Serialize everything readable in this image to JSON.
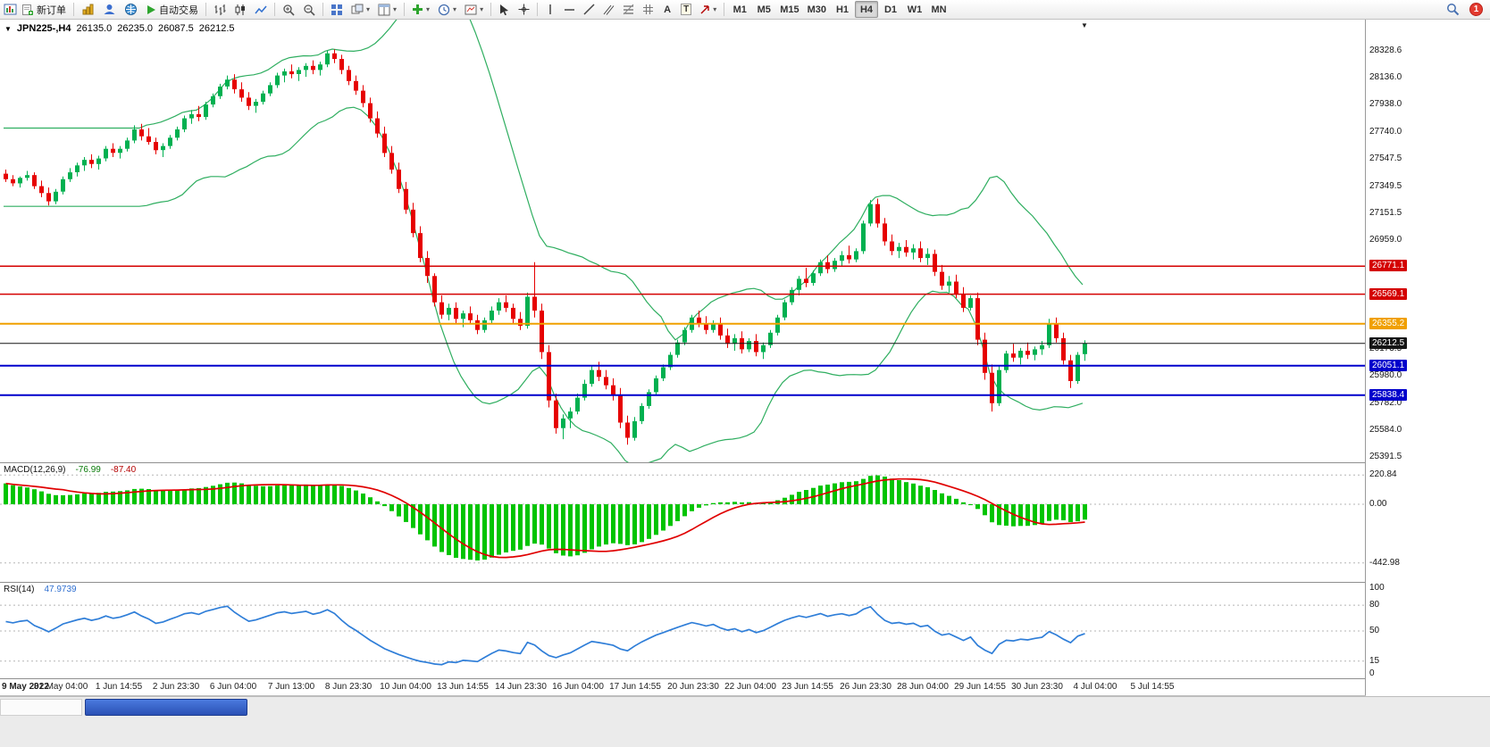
{
  "toolbar": {
    "new_order": "新订单",
    "autotrading": "自动交易",
    "timeframes": [
      "M1",
      "M5",
      "M15",
      "M30",
      "H1",
      "H4",
      "D1",
      "W1",
      "MN"
    ],
    "active_timeframe": "H4",
    "notification_badge": "1"
  },
  "chart_header": {
    "symbol_period": "JPN225-,H4",
    "open": "26135.0",
    "high": "26235.0",
    "low": "26087.5",
    "close": "26212.5"
  },
  "chart_data": {
    "type": "candlestick",
    "title": "JPN225-,H4",
    "y_axis": {
      "min": 25353,
      "max": 28554,
      "plain_labels": [
        {
          "text": "28328.6",
          "price": 28328.6
        },
        {
          "text": "28136.0",
          "price": 28136.0
        },
        {
          "text": "27938.0",
          "price": 27938.0
        },
        {
          "text": "27740.0",
          "price": 27740.0
        },
        {
          "text": "27547.5",
          "price": 27547.5
        },
        {
          "text": "27349.5",
          "price": 27349.5
        },
        {
          "text": "27151.5",
          "price": 27151.5
        },
        {
          "text": "26959.0",
          "price": 26959.0
        },
        {
          "text": "26173.5",
          "price": 26173.5
        },
        {
          "text": "25980.0",
          "price": 25980.0
        },
        {
          "text": "25782.0",
          "price": 25782.0
        },
        {
          "text": "25584.0",
          "price": 25584.0
        },
        {
          "text": "25391.5",
          "price": 25391.5
        }
      ]
    },
    "price_flags": [
      {
        "text": "26771.1",
        "price": 26771.1,
        "bg": "#d40000"
      },
      {
        "text": "26569.1",
        "price": 26569.1,
        "bg": "#d40000"
      },
      {
        "text": "26355.2",
        "price": 26355.2,
        "bg": "#f0a000"
      },
      {
        "text": "26212.5",
        "price": 26212.5,
        "bg": "#151515"
      },
      {
        "text": "26051.1",
        "price": 26051.1,
        "bg": "#0000cc"
      },
      {
        "text": "25838.4",
        "price": 25838.4,
        "bg": "#0000cc"
      }
    ],
    "hlines": [
      {
        "price": 26771.1,
        "color": "#d40000",
        "width": 1.5
      },
      {
        "price": 26569.1,
        "color": "#d40000",
        "width": 1.5
      },
      {
        "price": 26355.2,
        "color": "#f0a000",
        "width": 2
      },
      {
        "price": 26212.5,
        "color": "#151515",
        "width": 1
      },
      {
        "price": 26051.1,
        "color": "#0000cc",
        "width": 2
      },
      {
        "price": 25838.4,
        "color": "#0000cc",
        "width": 2
      }
    ],
    "x_labels": [
      "9 May 2022",
      "31 May 04:00",
      "1 Jun 14:55",
      "2 Jun 23:30",
      "6 Jun 04:00",
      "7 Jun 13:00",
      "8 Jun 23:30",
      "10 Jun 04:00",
      "13 Jun 14:55",
      "14 Jun 23:30",
      "16 Jun 04:00",
      "17 Jun 14:55",
      "20 Jun 23:30",
      "22 Jun 04:00",
      "23 Jun 14:55",
      "26 Jun 23:30",
      "28 Jun 04:00",
      "29 Jun 14:55",
      "30 Jun 23:30",
      "4 Jul 04:00",
      "5 Jul 14:55"
    ],
    "bollinger": {
      "period": 20,
      "deviation": 2,
      "color": "#2fae60"
    },
    "candle_up_color": "#00b050",
    "candle_down_color": "#e60000",
    "macd": {
      "name": "MACD(12,26,9)",
      "value_main": "-76.99",
      "value_signal": "-87.40",
      "scale": [
        {
          "text": "220.84",
          "value": 220.84
        },
        {
          "text": "0.00",
          "value": 0
        },
        {
          "text": "-442.98",
          "value": -442.98
        }
      ],
      "range_min": -586,
      "range_max": 310,
      "hist_color": "#00c400",
      "signal_color": "#e00000"
    },
    "rsi": {
      "name": "RSI(14)",
      "value": "47.9739",
      "scale": [
        {
          "text": "100",
          "value": 100
        },
        {
          "text": "80",
          "value": 80
        },
        {
          "text": "50",
          "value": 50
        },
        {
          "text": "15",
          "value": 15
        },
        {
          "text": "0",
          "value": 0
        }
      ],
      "levels": [
        80,
        50,
        15
      ],
      "range_min": -5,
      "range_max": 106,
      "color": "#2f7ed8"
    },
    "candles": [
      [
        27440,
        27470,
        27380,
        27400
      ],
      [
        27400,
        27430,
        27350,
        27370
      ],
      [
        27370,
        27420,
        27340,
        27410
      ],
      [
        27410,
        27460,
        27390,
        27430
      ],
      [
        27430,
        27450,
        27330,
        27350
      ],
      [
        27350,
        27390,
        27270,
        27300
      ],
      [
        27300,
        27340,
        27210,
        27240
      ],
      [
        27240,
        27330,
        27220,
        27310
      ],
      [
        27310,
        27420,
        27290,
        27400
      ],
      [
        27400,
        27480,
        27380,
        27450
      ],
      [
        27450,
        27520,
        27420,
        27500
      ],
      [
        27500,
        27560,
        27460,
        27540
      ],
      [
        27540,
        27580,
        27480,
        27510
      ],
      [
        27510,
        27570,
        27470,
        27550
      ],
      [
        27550,
        27640,
        27530,
        27620
      ],
      [
        27620,
        27660,
        27560,
        27590
      ],
      [
        27590,
        27640,
        27550,
        27620
      ],
      [
        27620,
        27700,
        27600,
        27680
      ],
      [
        27680,
        27790,
        27660,
        27760
      ],
      [
        27760,
        27800,
        27680,
        27710
      ],
      [
        27710,
        27770,
        27650,
        27670
      ],
      [
        27670,
        27700,
        27580,
        27610
      ],
      [
        27610,
        27660,
        27560,
        27640
      ],
      [
        27640,
        27720,
        27620,
        27700
      ],
      [
        27700,
        27780,
        27680,
        27760
      ],
      [
        27760,
        27860,
        27740,
        27840
      ],
      [
        27840,
        27900,
        27800,
        27870
      ],
      [
        27870,
        27930,
        27820,
        27850
      ],
      [
        27850,
        27960,
        27830,
        27940
      ],
      [
        27940,
        28020,
        27920,
        28000
      ],
      [
        28000,
        28090,
        27980,
        28070
      ],
      [
        28070,
        28150,
        28050,
        28120
      ],
      [
        28120,
        28160,
        28020,
        28050
      ],
      [
        28050,
        28100,
        27960,
        27990
      ],
      [
        27990,
        28030,
        27900,
        27930
      ],
      [
        27930,
        27980,
        27880,
        27960
      ],
      [
        27960,
        28040,
        27940,
        28020
      ],
      [
        28020,
        28100,
        28000,
        28080
      ],
      [
        28080,
        28170,
        28060,
        28150
      ],
      [
        28150,
        28200,
        28100,
        28180
      ],
      [
        28180,
        28230,
        28130,
        28160
      ],
      [
        28160,
        28210,
        28110,
        28190
      ],
      [
        28190,
        28240,
        28140,
        28220
      ],
      [
        28220,
        28260,
        28160,
        28190
      ],
      [
        28190,
        28250,
        28150,
        28230
      ],
      [
        28230,
        28330,
        28210,
        28310
      ],
      [
        28310,
        28340,
        28240,
        28270
      ],
      [
        28270,
        28300,
        28160,
        28190
      ],
      [
        28190,
        28220,
        28080,
        28110
      ],
      [
        28110,
        28150,
        28010,
        28040
      ],
      [
        28040,
        28080,
        27920,
        27950
      ],
      [
        27950,
        27990,
        27810,
        27840
      ],
      [
        27840,
        27890,
        27700,
        27730
      ],
      [
        27730,
        27780,
        27560,
        27590
      ],
      [
        27590,
        27640,
        27440,
        27470
      ],
      [
        27470,
        27520,
        27300,
        27330
      ],
      [
        27330,
        27380,
        27150,
        27180
      ],
      [
        27180,
        27230,
        26980,
        27010
      ],
      [
        27010,
        27060,
        26800,
        26830
      ],
      [
        26830,
        26880,
        26650,
        26700
      ],
      [
        26700,
        26720,
        26480,
        26510
      ],
      [
        26510,
        26560,
        26390,
        26420
      ],
      [
        26420,
        26500,
        26380,
        26470
      ],
      [
        26470,
        26510,
        26350,
        26390
      ],
      [
        26390,
        26450,
        26330,
        26430
      ],
      [
        26430,
        26480,
        26350,
        26380
      ],
      [
        26380,
        26420,
        26280,
        26310
      ],
      [
        26310,
        26400,
        26290,
        26380
      ],
      [
        26380,
        26480,
        26360,
        26450
      ],
      [
        26450,
        26540,
        26420,
        26510
      ],
      [
        26510,
        26560,
        26440,
        26470
      ],
      [
        26470,
        26500,
        26360,
        26390
      ],
      [
        26390,
        26440,
        26310,
        26340
      ],
      [
        26340,
        26580,
        26320,
        26550
      ],
      [
        26550,
        26800,
        26400,
        26450
      ],
      [
        26450,
        26500,
        26100,
        26150
      ],
      [
        26150,
        26200,
        25750,
        25800
      ],
      [
        25800,
        25850,
        25560,
        25600
      ],
      [
        25600,
        25700,
        25520,
        25670
      ],
      [
        25670,
        25750,
        25600,
        25720
      ],
      [
        25720,
        25850,
        25700,
        25820
      ],
      [
        25820,
        25950,
        25800,
        25920
      ],
      [
        25920,
        26050,
        25900,
        26020
      ],
      [
        26020,
        26080,
        25940,
        25970
      ],
      [
        25970,
        26020,
        25880,
        25910
      ],
      [
        25910,
        25960,
        25800,
        25840
      ],
      [
        25840,
        25890,
        25600,
        25640
      ],
      [
        25640,
        25690,
        25480,
        25530
      ],
      [
        25530,
        25680,
        25510,
        25650
      ],
      [
        25650,
        25780,
        25630,
        25760
      ],
      [
        25760,
        25880,
        25740,
        25860
      ],
      [
        25860,
        25980,
        25840,
        25960
      ],
      [
        25960,
        26060,
        25940,
        26040
      ],
      [
        26040,
        26150,
        26020,
        26130
      ],
      [
        26130,
        26240,
        26110,
        26220
      ],
      [
        26220,
        26330,
        26200,
        26310
      ],
      [
        26310,
        26420,
        26290,
        26400
      ],
      [
        26400,
        26450,
        26330,
        26360
      ],
      [
        26360,
        26410,
        26280,
        26310
      ],
      [
        26310,
        26380,
        26290,
        26360
      ],
      [
        26360,
        26400,
        26240,
        26270
      ],
      [
        26270,
        26320,
        26180,
        26210
      ],
      [
        26210,
        26280,
        26160,
        26250
      ],
      [
        26250,
        26300,
        26140,
        26170
      ],
      [
        26170,
        26250,
        26150,
        26230
      ],
      [
        26230,
        26280,
        26120,
        26150
      ],
      [
        26150,
        26220,
        26100,
        26200
      ],
      [
        26200,
        26310,
        26180,
        26290
      ],
      [
        26290,
        26420,
        26270,
        26400
      ],
      [
        26400,
        26530,
        26380,
        26510
      ],
      [
        26510,
        26620,
        26490,
        26600
      ],
      [
        26600,
        26700,
        26560,
        26680
      ],
      [
        26680,
        26760,
        26620,
        26650
      ],
      [
        26650,
        26740,
        26630,
        26720
      ],
      [
        26720,
        26820,
        26700,
        26800
      ],
      [
        26800,
        26850,
        26720,
        26750
      ],
      [
        26750,
        26830,
        26730,
        26810
      ],
      [
        26810,
        26880,
        26770,
        26850
      ],
      [
        26850,
        26920,
        26790,
        26820
      ],
      [
        26820,
        26900,
        26800,
        26880
      ],
      [
        26880,
        27100,
        26860,
        27080
      ],
      [
        27080,
        27250,
        27060,
        27220
      ],
      [
        27220,
        27260,
        27050,
        27080
      ],
      [
        27080,
        27120,
        26920,
        26950
      ],
      [
        26950,
        27000,
        26850,
        26880
      ],
      [
        26880,
        26940,
        26830,
        26910
      ],
      [
        26910,
        26960,
        26840,
        26870
      ],
      [
        26870,
        26930,
        26820,
        26900
      ],
      [
        26900,
        26950,
        26800,
        26830
      ],
      [
        26830,
        26900,
        26780,
        26860
      ],
      [
        26860,
        26890,
        26700,
        26730
      ],
      [
        26730,
        26780,
        26600,
        26630
      ],
      [
        26630,
        26700,
        26580,
        26660
      ],
      [
        26660,
        26710,
        26540,
        26570
      ],
      [
        26570,
        26620,
        26440,
        26470
      ],
      [
        26470,
        26560,
        26450,
        26540
      ],
      [
        26540,
        26580,
        26200,
        26240
      ],
      [
        26240,
        26290,
        25950,
        26000
      ],
      [
        26000,
        26060,
        25720,
        25780
      ],
      [
        25780,
        26050,
        25760,
        26020
      ],
      [
        26020,
        26160,
        26000,
        26140
      ],
      [
        26140,
        26210,
        26080,
        26110
      ],
      [
        26110,
        26180,
        26060,
        26160
      ],
      [
        26160,
        26220,
        26100,
        26130
      ],
      [
        26130,
        26190,
        26090,
        26170
      ],
      [
        26170,
        26230,
        26130,
        26200
      ],
      [
        26200,
        26390,
        26180,
        26360
      ],
      [
        26360,
        26400,
        26220,
        26250
      ],
      [
        26250,
        26290,
        26060,
        26090
      ],
      [
        26090,
        26130,
        25890,
        25940
      ],
      [
        25940,
        26150,
        25920,
        26130
      ],
      [
        26135,
        26235,
        26087.5,
        26212.5
      ]
    ]
  }
}
